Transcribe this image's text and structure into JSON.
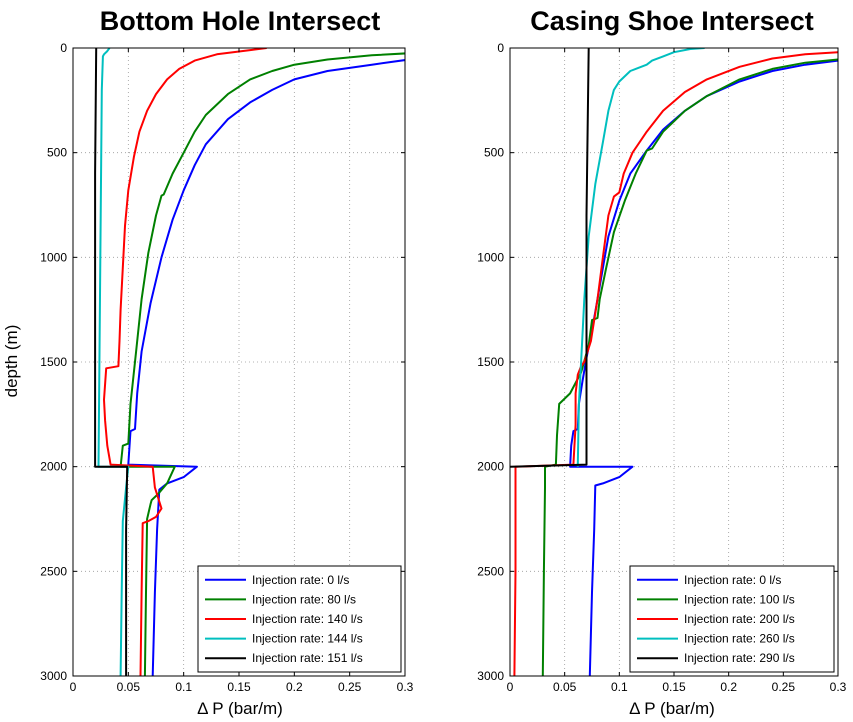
{
  "chart_data": [
    {
      "type": "line",
      "title": "Bottom Hole Intersect",
      "xlabel": "Δ P (bar/m)",
      "ylabel": "depth (m)",
      "xlim": [
        0,
        0.3
      ],
      "ylim": [
        0,
        3000
      ],
      "y_reversed": true,
      "grid": true,
      "legend_position": "bottom-right",
      "xticks": [
        "0",
        "0.05",
        "0.1",
        "0.15",
        "0.2",
        "0.25",
        "0.3"
      ],
      "yticks": [
        "0",
        "500",
        "1000",
        "1500",
        "2000",
        "2500",
        "3000"
      ],
      "series": [
        {
          "name": "Injection rate: 0 l/s",
          "color": "#0000ff",
          "points": [
            [
              0.31,
              50
            ],
            [
              0.27,
              80
            ],
            [
              0.23,
              110
            ],
            [
              0.2,
              150
            ],
            [
              0.18,
              200
            ],
            [
              0.16,
              260
            ],
            [
              0.14,
              340
            ],
            [
              0.12,
              460
            ],
            [
              0.11,
              560
            ],
            [
              0.1,
              680
            ],
            [
              0.09,
              820
            ],
            [
              0.08,
              1000
            ],
            [
              0.07,
              1220
            ],
            [
              0.062,
              1450
            ],
            [
              0.058,
              1650
            ],
            [
              0.056,
              1820
            ],
            [
              0.052,
              1830
            ],
            [
              0.05,
              1990
            ],
            [
              0.112,
              2000
            ],
            [
              0.1,
              2050
            ],
            [
              0.085,
              2080
            ],
            [
              0.078,
              2110
            ],
            [
              0.076,
              2300
            ],
            [
              0.074,
              2600
            ],
            [
              0.072,
              3000
            ]
          ]
        },
        {
          "name": "Injection rate: 80 l/s",
          "color": "#008000",
          "points": [
            [
              0.32,
              20
            ],
            [
              0.27,
              35
            ],
            [
              0.23,
              55
            ],
            [
              0.2,
              80
            ],
            [
              0.18,
              110
            ],
            [
              0.16,
              150
            ],
            [
              0.14,
              220
            ],
            [
              0.12,
              320
            ],
            [
              0.11,
              400
            ],
            [
              0.1,
              500
            ],
            [
              0.09,
              600
            ],
            [
              0.082,
              700
            ],
            [
              0.08,
              705
            ],
            [
              0.075,
              800
            ],
            [
              0.068,
              980
            ],
            [
              0.062,
              1200
            ],
            [
              0.057,
              1450
            ],
            [
              0.052,
              1700
            ],
            [
              0.05,
              1890
            ],
            [
              0.045,
              1900
            ],
            [
              0.043,
              2000
            ],
            [
              0.092,
              2000
            ],
            [
              0.085,
              2080
            ],
            [
              0.077,
              2130
            ],
            [
              0.071,
              2160
            ],
            [
              0.07,
              2180
            ],
            [
              0.067,
              2250
            ],
            [
              0.066,
              2600
            ],
            [
              0.065,
              3000
            ]
          ]
        },
        {
          "name": "Injection rate: 140 l/s",
          "color": "#ff0000",
          "points": [
            [
              0.175,
              0
            ],
            [
              0.16,
              10
            ],
            [
              0.13,
              30
            ],
            [
              0.11,
              60
            ],
            [
              0.096,
              100
            ],
            [
              0.085,
              150
            ],
            [
              0.075,
              220
            ],
            [
              0.067,
              300
            ],
            [
              0.06,
              400
            ],
            [
              0.055,
              520
            ],
            [
              0.05,
              680
            ],
            [
              0.047,
              850
            ],
            [
              0.045,
              1050
            ],
            [
              0.043,
              1250
            ],
            [
              0.042,
              1400
            ],
            [
              0.041,
              1520
            ],
            [
              0.03,
              1530
            ],
            [
              0.028,
              1680
            ],
            [
              0.029,
              1780
            ],
            [
              0.031,
              1900
            ],
            [
              0.034,
              1990
            ],
            [
              0.072,
              2000
            ],
            [
              0.074,
              2100
            ],
            [
              0.08,
              2200
            ],
            [
              0.075,
              2240
            ],
            [
              0.068,
              2260
            ],
            [
              0.063,
              2270
            ],
            [
              0.062,
              2600
            ],
            [
              0.061,
              3000
            ]
          ]
        },
        {
          "name": "Injection rate: 144 l/s",
          "color": "#00bfbf",
          "points": [
            [
              0.033,
              0
            ],
            [
              0.031,
              15
            ],
            [
              0.028,
              30
            ],
            [
              0.027,
              40
            ],
            [
              0.026,
              200
            ],
            [
              0.025,
              800
            ],
            [
              0.024,
              1400
            ],
            [
              0.023,
              2000
            ],
            [
              0.05,
              2000
            ],
            [
              0.048,
              2100
            ],
            [
              0.045,
              2260
            ],
            [
              0.044,
              2600
            ],
            [
              0.043,
              3000
            ]
          ]
        },
        {
          "name": "Injection rate: 151 l/s",
          "color": "#000000",
          "points": [
            [
              0.021,
              0
            ],
            [
              0.02,
              600
            ],
            [
              0.02,
              1200
            ],
            [
              0.02,
              2000
            ],
            [
              0.049,
              2000
            ],
            [
              0.048,
              2300
            ],
            [
              0.048,
              3000
            ]
          ]
        }
      ]
    },
    {
      "type": "line",
      "title": "Casing Shoe Intersect",
      "xlabel": "Δ P (bar/m)",
      "ylabel": "",
      "xlim": [
        0,
        0.3
      ],
      "ylim": [
        0,
        3000
      ],
      "y_reversed": true,
      "grid": true,
      "legend_position": "bottom-right",
      "xticks": [
        "0",
        "0.05",
        "0.1",
        "0.15",
        "0.2",
        "0.25",
        "0.3"
      ],
      "yticks": [
        "0",
        "500",
        "1000",
        "1500",
        "2000",
        "2500",
        "3000"
      ],
      "series": [
        {
          "name": "Injection rate: 0 l/s",
          "color": "#0000ff",
          "points": [
            [
              0.3,
              60
            ],
            [
              0.27,
              80
            ],
            [
              0.24,
              110
            ],
            [
              0.21,
              160
            ],
            [
              0.18,
              230
            ],
            [
              0.16,
              300
            ],
            [
              0.14,
              390
            ],
            [
              0.125,
              490
            ],
            [
              0.11,
              600
            ],
            [
              0.1,
              730
            ],
            [
              0.09,
              900
            ],
            [
              0.085,
              1050
            ],
            [
              0.08,
              1200
            ],
            [
              0.075,
              1350
            ],
            [
              0.07,
              1480
            ],
            [
              0.066,
              1600
            ],
            [
              0.063,
              1700
            ],
            [
              0.062,
              1820
            ],
            [
              0.058,
              1830
            ],
            [
              0.056,
              1900
            ],
            [
              0.055,
              2000
            ],
            [
              0.112,
              2000
            ],
            [
              0.1,
              2050
            ],
            [
              0.085,
              2080
            ],
            [
              0.078,
              2090
            ],
            [
              0.077,
              2300
            ],
            [
              0.075,
              2600
            ],
            [
              0.073,
              3000
            ]
          ]
        },
        {
          "name": "Injection rate: 100 l/s",
          "color": "#008000",
          "points": [
            [
              0.3,
              55
            ],
            [
              0.27,
              70
            ],
            [
              0.24,
              100
            ],
            [
              0.21,
              150
            ],
            [
              0.18,
              230
            ],
            [
              0.16,
              300
            ],
            [
              0.14,
              400
            ],
            [
              0.13,
              480
            ],
            [
              0.125,
              490
            ],
            [
              0.115,
              600
            ],
            [
              0.105,
              730
            ],
            [
              0.095,
              880
            ],
            [
              0.088,
              1050
            ],
            [
              0.082,
              1200
            ],
            [
              0.08,
              1290
            ],
            [
              0.075,
              1300
            ],
            [
              0.072,
              1420
            ],
            [
              0.065,
              1550
            ],
            [
              0.06,
              1600
            ],
            [
              0.055,
              1650
            ],
            [
              0.045,
              1700
            ],
            [
              0.043,
              1850
            ],
            [
              0.042,
              1990
            ],
            [
              0.032,
              2000
            ],
            [
              0.032,
              2100
            ],
            [
              0.031,
              2500
            ],
            [
              0.03,
              3000
            ]
          ]
        },
        {
          "name": "Injection rate: 200 l/s",
          "color": "#ff0000",
          "points": [
            [
              0.3,
              20
            ],
            [
              0.27,
              30
            ],
            [
              0.24,
              50
            ],
            [
              0.21,
              90
            ],
            [
              0.18,
              150
            ],
            [
              0.16,
              210
            ],
            [
              0.14,
              300
            ],
            [
              0.125,
              400
            ],
            [
              0.112,
              500
            ],
            [
              0.104,
              600
            ],
            [
              0.1,
              690
            ],
            [
              0.095,
              710
            ],
            [
              0.09,
              800
            ],
            [
              0.085,
              1000
            ],
            [
              0.08,
              1200
            ],
            [
              0.074,
              1400
            ],
            [
              0.068,
              1500
            ],
            [
              0.065,
              1520
            ],
            [
              0.062,
              1560
            ],
            [
              0.06,
              1650
            ],
            [
              0.06,
              1800
            ],
            [
              0.058,
              1990
            ],
            [
              0.005,
              2000
            ],
            [
              0.005,
              2500
            ],
            [
              0.004,
              3000
            ]
          ]
        },
        {
          "name": "Injection rate: 260 l/s",
          "color": "#00bfbf",
          "points": [
            [
              0.178,
              0
            ],
            [
              0.165,
              5
            ],
            [
              0.15,
              20
            ],
            [
              0.14,
              40
            ],
            [
              0.13,
              60
            ],
            [
              0.125,
              80
            ],
            [
              0.11,
              110
            ],
            [
              0.1,
              160
            ],
            [
              0.095,
              200
            ],
            [
              0.09,
              300
            ],
            [
              0.085,
              450
            ],
            [
              0.078,
              650
            ],
            [
              0.072,
              900
            ],
            [
              0.068,
              1200
            ],
            [
              0.065,
              1500
            ],
            [
              0.063,
              1700
            ],
            [
              0.062,
              1990
            ],
            [
              0.062,
              2000
            ]
          ]
        },
        {
          "name": "Injection rate: 290 l/s",
          "color": "#000000",
          "points": [
            [
              0.072,
              0
            ],
            [
              0.071,
              400
            ],
            [
              0.07,
              800
            ],
            [
              0.07,
              1200
            ],
            [
              0.07,
              1600
            ],
            [
              0.07,
              1990
            ],
            [
              0.0,
              2000
            ]
          ]
        }
      ]
    }
  ]
}
